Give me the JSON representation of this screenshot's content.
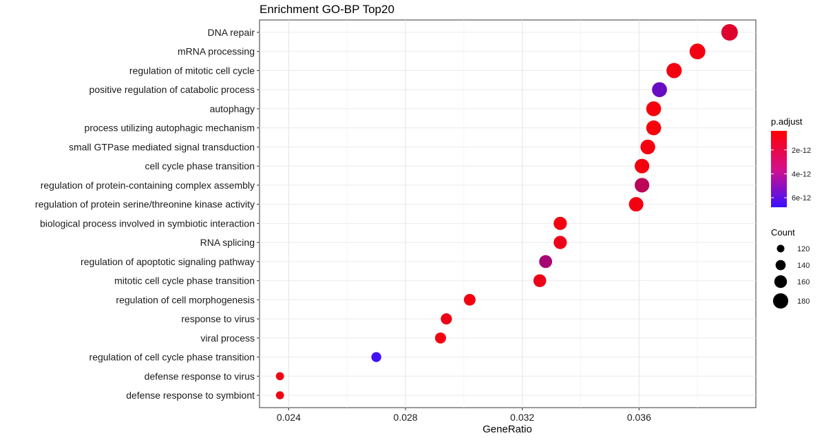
{
  "chart_data": {
    "type": "scatter",
    "title": "Enrichment GO-BP Top20",
    "xlabel": "GeneRatio",
    "ylabel": "",
    "xlim": [
      0.023,
      0.04
    ],
    "xticks": [
      0.024,
      0.028,
      0.032,
      0.036
    ],
    "xtick_labels": [
      "0.024",
      "0.028",
      "0.032",
      "0.036"
    ],
    "grid": true,
    "legend_placement": "right",
    "categories": [
      "DNA repair",
      "mRNA processing",
      "regulation of mitotic cell cycle",
      "positive regulation of catabolic process",
      "autophagy",
      "process utilizing autophagic mechanism",
      "small GTPase mediated signal transduction",
      "cell cycle phase transition",
      "regulation of protein-containing complex assembly",
      "regulation of protein serine/threonine kinase activity",
      "biological process involved in symbiotic interaction",
      "RNA splicing",
      "regulation of apoptotic signaling pathway",
      "mitotic cell cycle phase transition",
      "regulation of cell morphogenesis",
      "response to virus",
      "viral process",
      "regulation of cell cycle phase transition",
      "defense response to virus",
      "defense response to symbiont"
    ],
    "gene_ratio": [
      0.0391,
      0.038,
      0.0372,
      0.0367,
      0.0365,
      0.0365,
      0.0363,
      0.0361,
      0.0361,
      0.0359,
      0.0333,
      0.0333,
      0.0328,
      0.0326,
      0.0302,
      0.0294,
      0.0292,
      0.027,
      0.0237,
      0.0237
    ],
    "count": [
      190,
      184,
      180,
      178,
      177,
      177,
      176,
      175,
      175,
      174,
      164,
      164,
      162,
      161,
      152,
      148,
      147,
      138,
      124,
      124
    ],
    "p_adjust": [
      1.5e-12,
      8e-13,
      8e-13,
      5.3e-12,
      7e-13,
      7e-13,
      8e-13,
      8e-13,
      2.6e-12,
      8e-13,
      8e-13,
      1e-12,
      3.3e-12,
      1e-12,
      8e-13,
      1e-12,
      8e-13,
      6.6e-12,
      9e-13,
      9e-13
    ],
    "color_legend": {
      "title": "p.adjust",
      "labels": [
        "2e-12",
        "4e-12",
        "6e-12"
      ],
      "values": [
        2e-12,
        4e-12,
        6e-12
      ],
      "range": [
        4e-13,
        6.8e-12
      ],
      "low_color": "#ff0000",
      "high_color": "#3a10ff"
    },
    "size_legend": {
      "title": "Count",
      "labels": [
        "120",
        "140",
        "160",
        "180"
      ],
      "values": [
        120,
        140,
        160,
        180
      ]
    }
  }
}
